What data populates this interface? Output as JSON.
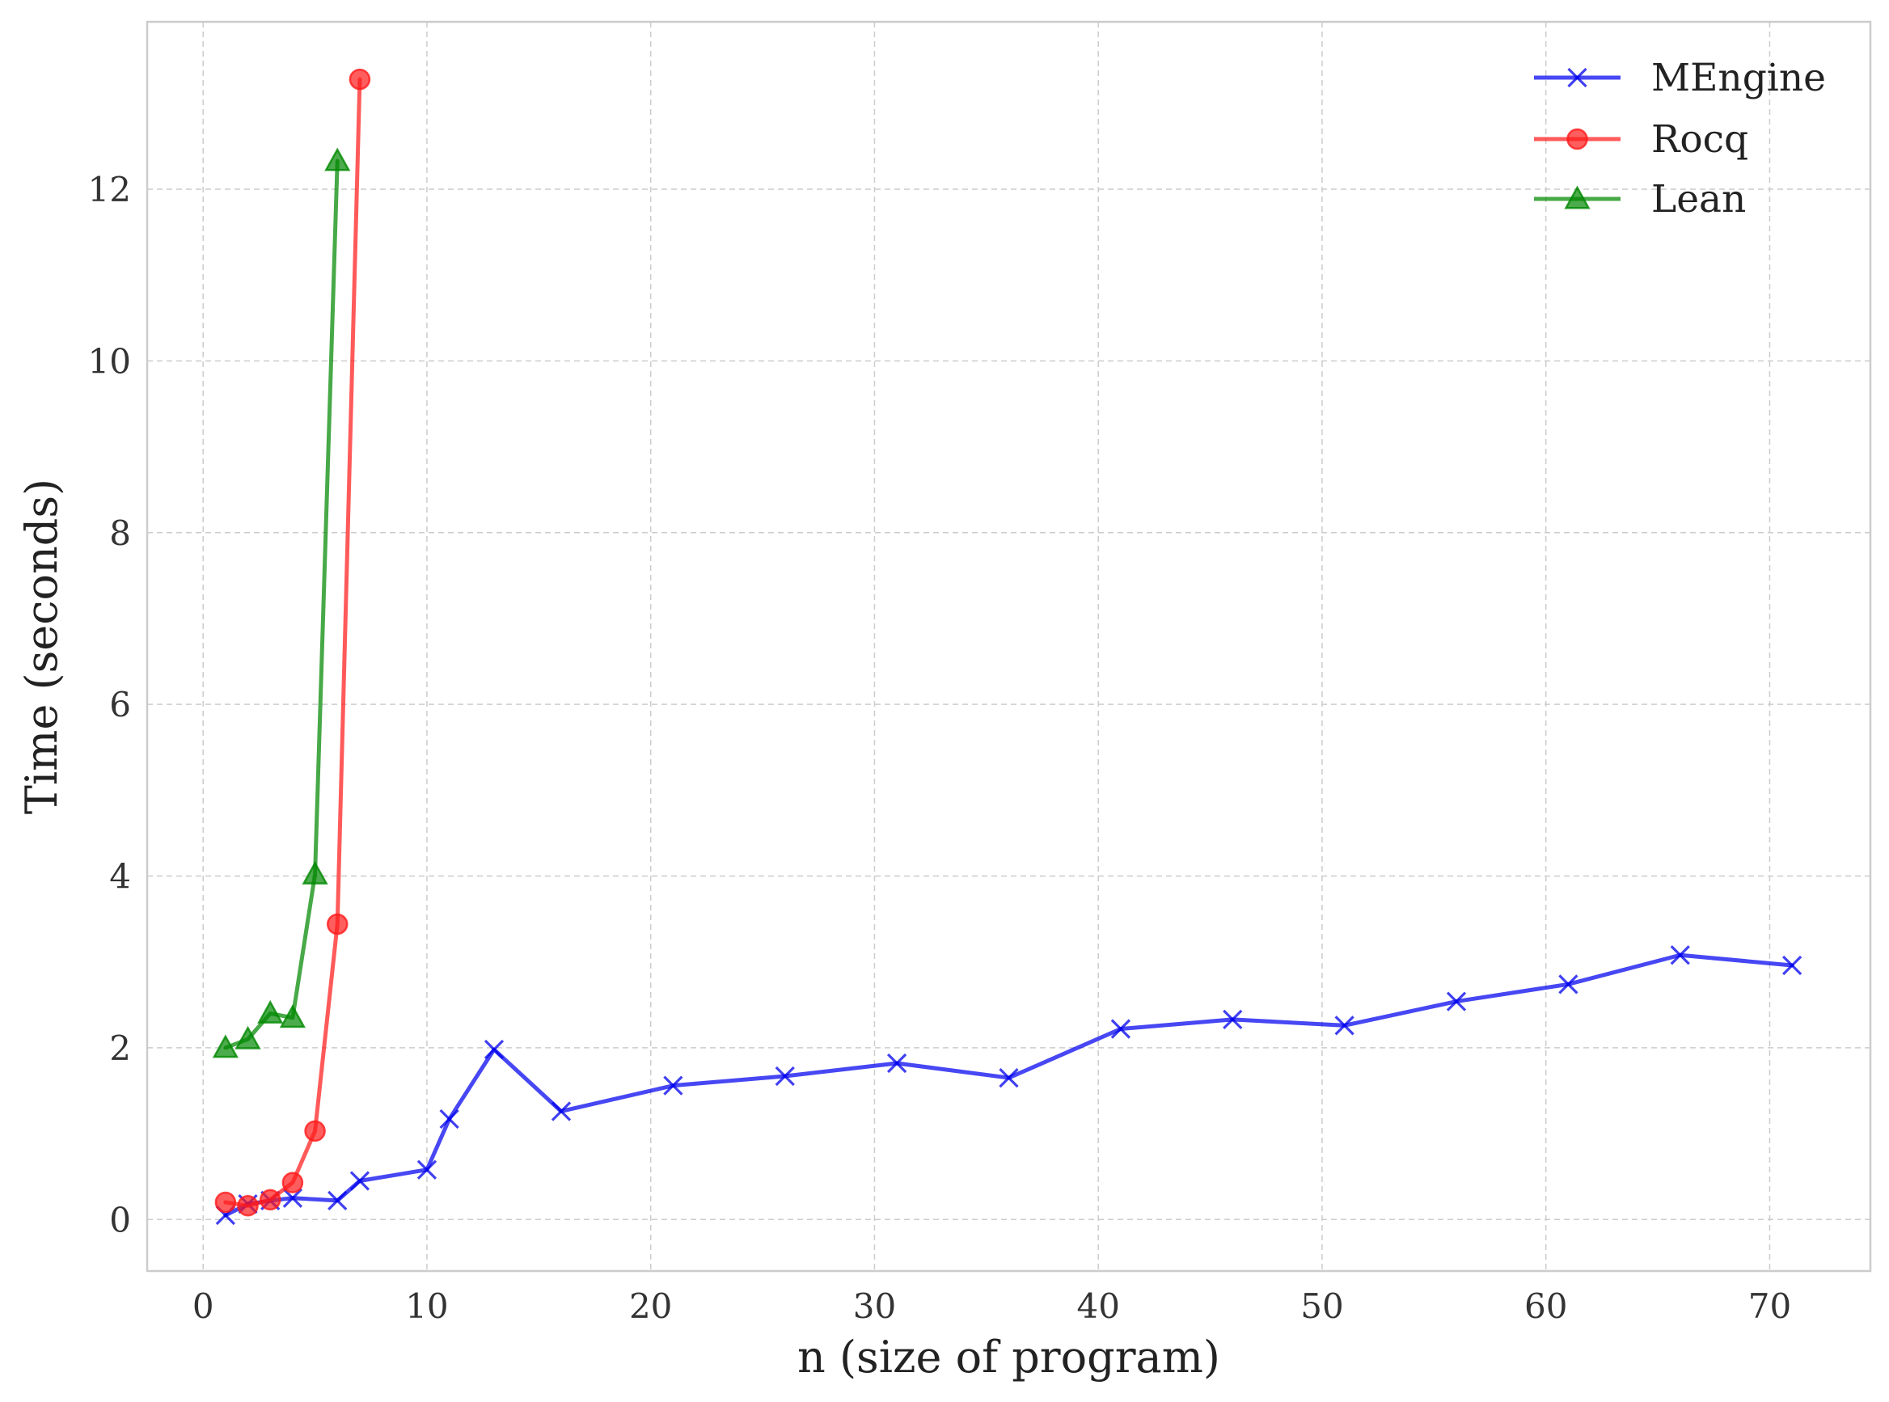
{
  "chart_data": {
    "type": "line",
    "title": "",
    "xlabel": "n (size of program)",
    "ylabel": "Time (seconds)",
    "xlim": [
      -2.5,
      74.5
    ],
    "ylim": [
      -0.6,
      13.95
    ],
    "xticks": [
      0,
      10,
      20,
      30,
      40,
      50,
      60,
      70
    ],
    "yticks": [
      0,
      2,
      4,
      6,
      8,
      10,
      12
    ],
    "grid": true,
    "legend_position": "top-right",
    "series": [
      {
        "name": "MEngine",
        "color": "#0000ee",
        "marker": "x",
        "x": [
          1,
          2,
          3,
          4,
          6,
          7,
          10,
          11,
          13,
          16,
          21,
          26,
          31,
          36,
          41,
          46,
          51,
          56,
          61,
          66,
          71
        ],
        "y": [
          0.05,
          0.18,
          0.22,
          0.25,
          0.22,
          0.45,
          0.58,
          1.17,
          1.98,
          1.26,
          1.56,
          1.67,
          1.82,
          1.65,
          2.22,
          2.33,
          2.26,
          2.54,
          2.74,
          3.08,
          2.96
        ]
      },
      {
        "name": "Rocq",
        "color": "#ff1a1a",
        "marker": "o",
        "x": [
          1,
          2,
          3,
          4,
          5,
          6,
          7
        ],
        "y": [
          0.2,
          0.16,
          0.23,
          0.43,
          1.03,
          3.44,
          13.28
        ]
      },
      {
        "name": "Lean",
        "color": "#008800",
        "marker": "^",
        "x": [
          1,
          2,
          3,
          4,
          5,
          6
        ],
        "y": [
          2.0,
          2.1,
          2.4,
          2.35,
          4.02,
          12.33
        ]
      }
    ]
  }
}
